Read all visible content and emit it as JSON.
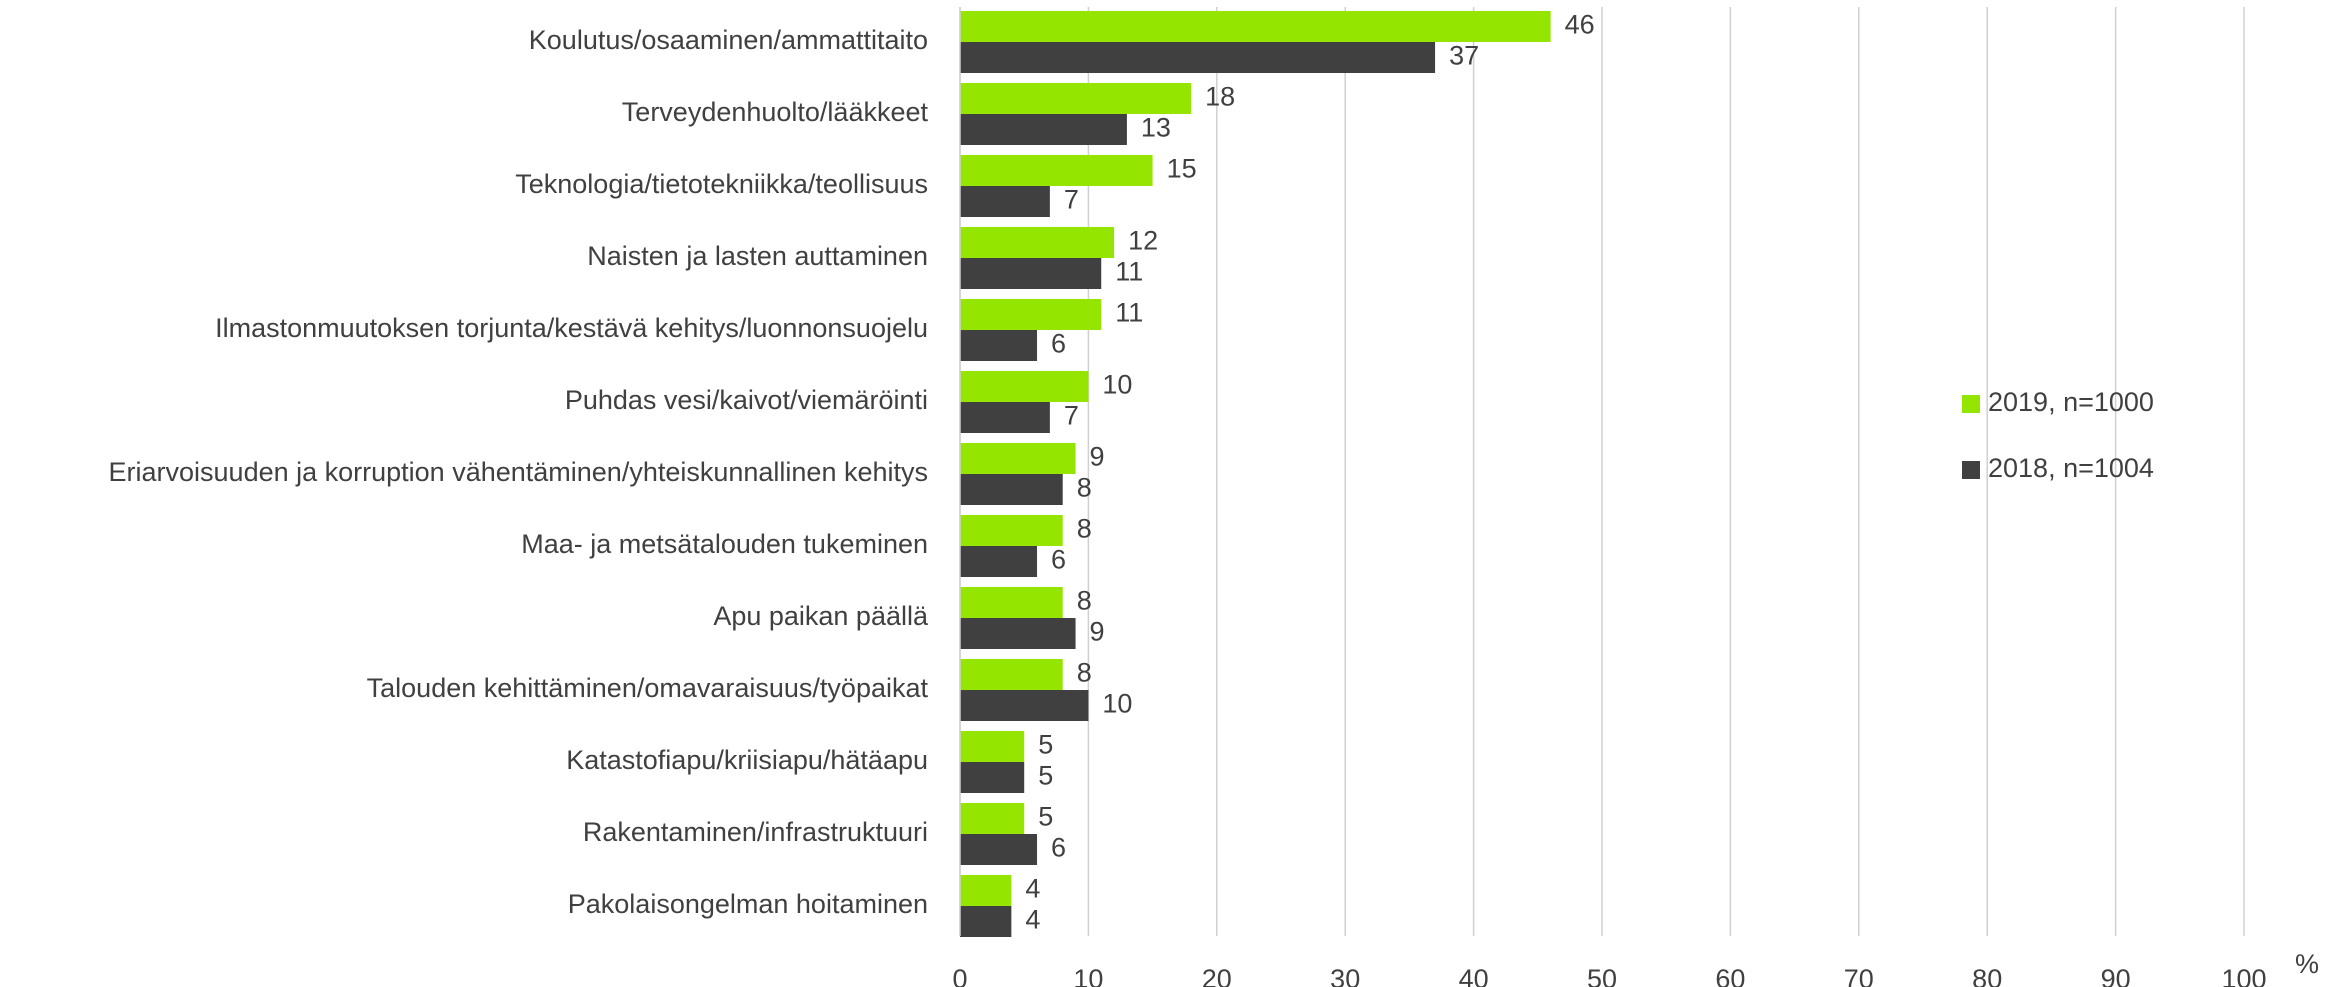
{
  "chart_data": {
    "type": "hbar",
    "x_label": "%",
    "categories": [
      "Koulutus/osaaminen/ammattitaito",
      "Terveydenhuolto/lääkkeet",
      "Teknologia/tietotekniikka/teollisuus",
      "Naisten ja lasten auttaminen",
      "Ilmastonmuutoksen torjunta/kestävä kehitys/luonnonsuojelu",
      "Puhdas vesi/kaivot/viemäröinti",
      "Eriarvoisuuden ja korruption vähentäminen/yhteiskunnallinen kehitys",
      "Maa- ja metsätalouden tukeminen",
      "Apu paikan päällä",
      "Talouden kehittäminen/omavaraisuus/työpaikat",
      "Katastofiapu/kriisiapu/hätäapu",
      "Rakentaminen/infrastruktuuri",
      "Pakolaisongelman hoitaminen"
    ],
    "series": [
      {
        "name": "2019, n=1000",
        "color": "#94e600",
        "values": [
          46,
          18,
          15,
          12,
          11,
          10,
          9,
          8,
          8,
          8,
          5,
          5,
          4
        ]
      },
      {
        "name": "2018, n=1004",
        "color": "#404040",
        "values": [
          37,
          13,
          7,
          11,
          6,
          7,
          8,
          6,
          9,
          10,
          5,
          6,
          4
        ]
      }
    ],
    "xlim": [
      0,
      100
    ],
    "xticks": [
      0,
      10,
      20,
      30,
      40,
      50,
      60,
      70,
      80,
      90,
      100
    ],
    "grid": true,
    "legend": "right"
  }
}
